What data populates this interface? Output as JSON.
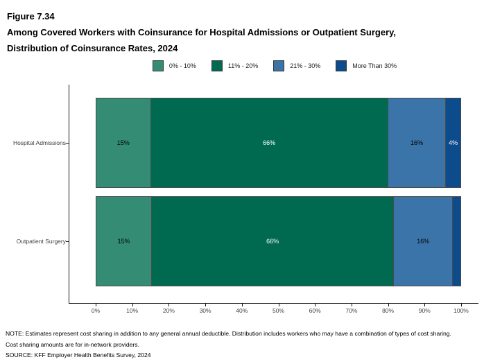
{
  "figure": {
    "label": "Figure 7.34",
    "title_line1": "Among Covered Workers with Coinsurance for Hospital Admissions or Outpatient Surgery,",
    "title_line2": "Distribution of Coinsurance Rates, 2024"
  },
  "chart_data": {
    "type": "bar",
    "orientation": "horizontal",
    "stacked": true,
    "title": "Among Covered Workers with Coinsurance for Hospital Admissions or Outpatient Surgery, Distribution of Coinsurance Rates, 2024",
    "categories": [
      "Hospital Admissions",
      "Outpatient Surgery"
    ],
    "series": [
      {
        "name": "0% - 10%",
        "color": "#348C75",
        "values": [
          15,
          15
        ],
        "labels": [
          "15%",
          "15%"
        ],
        "label_color": "#000000"
      },
      {
        "name": "11% - 20%",
        "color": "#006A51",
        "values": [
          66,
          66
        ],
        "labels": [
          "66%",
          "66%"
        ],
        "label_color": "#ffffff"
      },
      {
        "name": "21% - 30%",
        "color": "#3B74A8",
        "values": [
          16,
          16
        ],
        "labels": [
          "16%",
          "16%"
        ],
        "label_color": "#000000"
      },
      {
        "name": "More Than 30%",
        "color": "#0D4C8C",
        "values": [
          4,
          2
        ],
        "labels": [
          "4%",
          ""
        ],
        "label_color": "#ffffff"
      }
    ],
    "x_axis": {
      "tick_labels": [
        "0%",
        "10%",
        "20%",
        "30%",
        "40%",
        "50%",
        "60%",
        "70%",
        "80%",
        "90%",
        "100%"
      ],
      "range": [
        0,
        100
      ]
    },
    "legend_position": "top-center",
    "grid": false
  },
  "notes": {
    "note": "NOTE: Estimates represent cost sharing in addition to any general annual deductible. Distribution includes workers who may have a combination of types of cost sharing. Cost sharing amounts are for in-network providers.",
    "source": "SOURCE: KFF Employer Health Benefits Survey, 2024"
  }
}
